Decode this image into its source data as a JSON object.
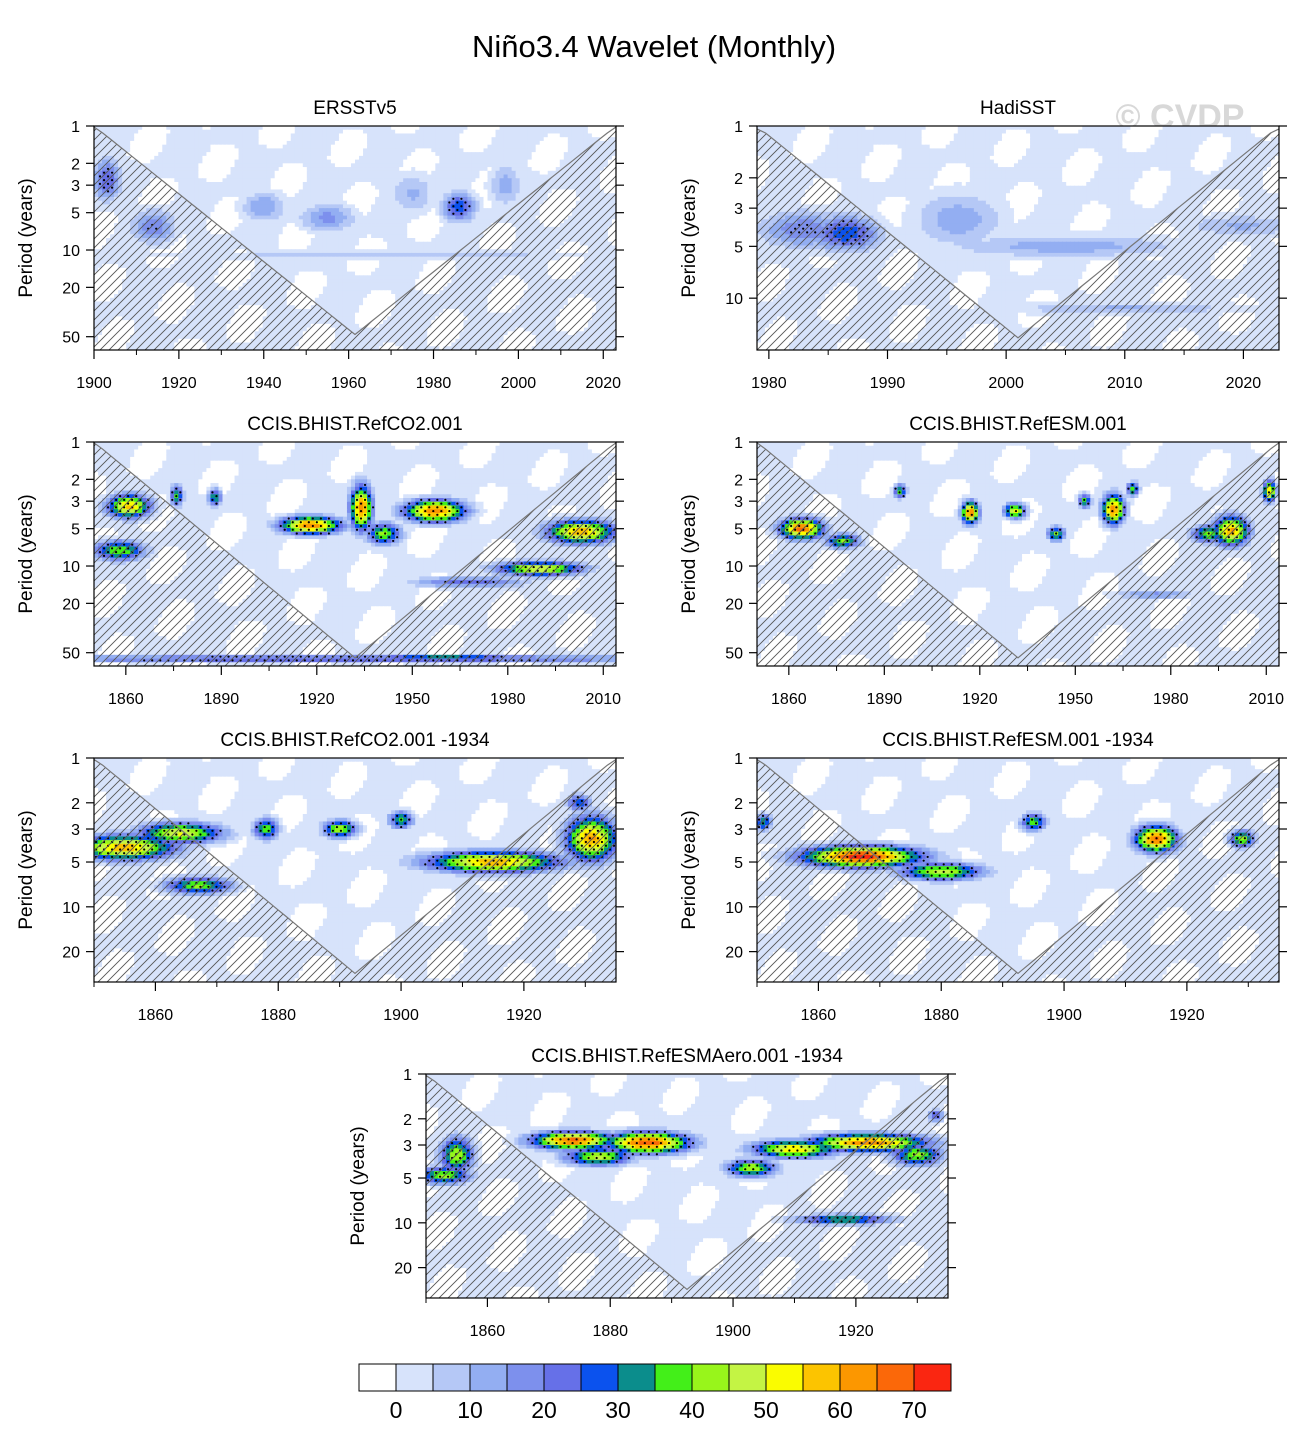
{
  "title": "Niño3.4 Wavelet (Monthly)",
  "watermark": "© CVDP",
  "colorbar": {
    "colors": [
      "#ffffff",
      "#d7e3fb",
      "#b5c8f6",
      "#93aef2",
      "#7d90ed",
      "#6670e8",
      "#0b52ee",
      "#0b8d8c",
      "#43ef19",
      "#98f51b",
      "#c4f444",
      "#fafc00",
      "#fcc400",
      "#fc9700",
      "#fb6809",
      "#fa2611"
    ],
    "labels": [
      "0",
      "10",
      "20",
      "30",
      "40",
      "50",
      "60",
      "70"
    ]
  },
  "chart_data": [
    {
      "type": "heatmap",
      "id": "ersstv5",
      "title": "ERSSTv5",
      "ylabel": "Period (years)",
      "x_range": [
        1900,
        2023
      ],
      "x_ticks": [
        1900,
        1920,
        1940,
        1960,
        1980,
        2000,
        2020
      ],
      "x_tick_labels": [
        "1900",
        "1920",
        "1940",
        "1960",
        "1980",
        "2000",
        "2020"
      ],
      "y_range": [
        1,
        64
      ],
      "y_ticks": [
        1,
        2,
        3,
        5,
        10,
        20,
        50
      ],
      "y_tick_labels": [
        "1",
        "2",
        "3",
        "5",
        "10",
        "20",
        "50"
      ],
      "coi_apex": 48,
      "blobs": [
        {
          "x": 1903,
          "p": 2.7,
          "w": 2.5,
          "h": 0.3,
          "v": 30
        },
        {
          "x": 1914,
          "p": 6.5,
          "w": 4,
          "h": 0.25,
          "v": 24
        },
        {
          "x": 1986,
          "p": 4.5,
          "w": 3,
          "h": 0.2,
          "v": 34
        },
        {
          "x": 1955,
          "p": 5.5,
          "w": 5,
          "h": 0.2,
          "v": 22
        },
        {
          "x": 1940,
          "p": 4.5,
          "w": 4,
          "h": 0.22,
          "v": 20
        },
        {
          "x": 1997,
          "p": 3,
          "w": 3,
          "h": 0.3,
          "v": 18
        },
        {
          "x": 1975,
          "p": 3.5,
          "w": 4,
          "h": 0.3,
          "v": 16
        },
        {
          "x": 1970,
          "p": 11,
          "w": 40,
          "h": 0.06,
          "v": 14
        }
      ]
    },
    {
      "type": "heatmap",
      "id": "hadisst",
      "title": "HadiSST",
      "ylabel": "Period (years)",
      "x_range": [
        1979,
        2023
      ],
      "x_ticks": [
        1980,
        1990,
        2000,
        2010,
        2020
      ],
      "x_tick_labels": [
        "1980",
        "1990",
        "2000",
        "2010",
        "2020"
      ],
      "y_range": [
        1,
        20
      ],
      "y_ticks": [
        1,
        2,
        3,
        5,
        10
      ],
      "y_tick_labels": [
        "1",
        "2",
        "3",
        "5",
        "10"
      ],
      "coi_apex": 17,
      "blobs": [
        {
          "x": 1986.5,
          "p": 4.2,
          "w": 2.2,
          "h": 0.18,
          "v": 34
        },
        {
          "x": 1983,
          "p": 4,
          "w": 3,
          "h": 0.2,
          "v": 24
        },
        {
          "x": 1996,
          "p": 3.5,
          "w": 3,
          "h": 0.3,
          "v": 18
        },
        {
          "x": 2005,
          "p": 5,
          "w": 8,
          "h": 0.12,
          "v": 18
        },
        {
          "x": 2010,
          "p": 11.5,
          "w": 8,
          "h": 0.07,
          "v": 16
        },
        {
          "x": 2020,
          "p": 3.8,
          "w": 4,
          "h": 0.12,
          "v": 16
        }
      ]
    },
    {
      "type": "heatmap",
      "id": "refco2",
      "title": "CCIS.BHIST.RefCO2.001",
      "ylabel": "Period (years)",
      "x_range": [
        1850,
        2014
      ],
      "x_ticks": [
        1860,
        1890,
        1920,
        1950,
        1980,
        2010
      ],
      "x_tick_labels": [
        "1860",
        "1890",
        "1920",
        "1950",
        "1980",
        "2010"
      ],
      "y_range": [
        1,
        64
      ],
      "y_ticks": [
        1,
        2,
        3,
        5,
        10,
        20,
        50
      ],
      "y_tick_labels": [
        "1",
        "2",
        "3",
        "5",
        "10",
        "20",
        "50"
      ],
      "coi_apex": 55,
      "blobs": [
        {
          "x": 1861,
          "p": 3.3,
          "w": 5,
          "h": 0.16,
          "v": 62
        },
        {
          "x": 1858,
          "p": 7.5,
          "w": 6,
          "h": 0.14,
          "v": 46
        },
        {
          "x": 1876,
          "p": 2.7,
          "w": 1.5,
          "h": 0.15,
          "v": 42
        },
        {
          "x": 1888,
          "p": 2.8,
          "w": 1.5,
          "h": 0.12,
          "v": 42
        },
        {
          "x": 1918,
          "p": 4.7,
          "w": 7,
          "h": 0.12,
          "v": 70
        },
        {
          "x": 1934,
          "p": 3.4,
          "w": 2.5,
          "h": 0.3,
          "v": 70
        },
        {
          "x": 1957,
          "p": 3.6,
          "w": 7,
          "h": 0.15,
          "v": 70
        },
        {
          "x": 1941,
          "p": 5.5,
          "w": 4,
          "h": 0.15,
          "v": 46
        },
        {
          "x": 2003,
          "p": 5.3,
          "w": 8,
          "h": 0.16,
          "v": 64
        },
        {
          "x": 1990,
          "p": 10.5,
          "w": 10,
          "h": 0.1,
          "v": 56
        },
        {
          "x": 1968,
          "p": 13.5,
          "w": 14,
          "h": 0.08,
          "v": 28
        },
        {
          "x": 1930,
          "p": 56,
          "w": 90,
          "h": 0.05,
          "v": 34
        },
        {
          "x": 1960,
          "p": 55,
          "w": 20,
          "h": 0.04,
          "v": 42
        }
      ]
    },
    {
      "type": "heatmap",
      "id": "refesm",
      "title": "CCIS.BHIST.RefESM.001",
      "ylabel": "Period (years)",
      "x_range": [
        1850,
        2014
      ],
      "x_ticks": [
        1860,
        1890,
        1920,
        1950,
        1980,
        2010
      ],
      "x_tick_labels": [
        "1860",
        "1890",
        "1920",
        "1950",
        "1980",
        "2010"
      ],
      "y_range": [
        1,
        64
      ],
      "y_ticks": [
        1,
        2,
        3,
        5,
        10,
        20,
        50
      ],
      "y_tick_labels": [
        "1",
        "2",
        "3",
        "5",
        "10",
        "20",
        "50"
      ],
      "coi_apex": 55,
      "blobs": [
        {
          "x": 1864,
          "p": 5,
          "w": 5,
          "h": 0.14,
          "v": 72
        },
        {
          "x": 1877,
          "p": 6.3,
          "w": 4,
          "h": 0.1,
          "v": 46
        },
        {
          "x": 1917,
          "p": 3.7,
          "w": 2,
          "h": 0.15,
          "v": 70
        },
        {
          "x": 1931,
          "p": 3.6,
          "w": 2.5,
          "h": 0.1,
          "v": 56
        },
        {
          "x": 1944,
          "p": 5.5,
          "w": 2,
          "h": 0.1,
          "v": 46
        },
        {
          "x": 1962,
          "p": 3.5,
          "w": 2.5,
          "h": 0.2,
          "v": 70
        },
        {
          "x": 1953,
          "p": 3,
          "w": 1.5,
          "h": 0.1,
          "v": 42
        },
        {
          "x": 1999,
          "p": 5.2,
          "w": 4,
          "h": 0.2,
          "v": 66
        },
        {
          "x": 1992,
          "p": 5.5,
          "w": 4,
          "h": 0.12,
          "v": 46
        },
        {
          "x": 2011,
          "p": 2.5,
          "w": 1.5,
          "h": 0.15,
          "v": 60
        },
        {
          "x": 1895,
          "p": 2.5,
          "w": 1.5,
          "h": 0.1,
          "v": 42
        },
        {
          "x": 1968,
          "p": 2.4,
          "w": 1.5,
          "h": 0.1,
          "v": 42
        },
        {
          "x": 1975,
          "p": 17,
          "w": 10,
          "h": 0.06,
          "v": 22
        }
      ]
    },
    {
      "type": "heatmap",
      "id": "refco2_1934",
      "title": "CCIS.BHIST.RefCO2.001 -1934",
      "ylabel": "Period (years)",
      "x_range": [
        1850,
        1935
      ],
      "x_ticks": [
        1860,
        1880,
        1900,
        1920
      ],
      "x_tick_labels": [
        "1860",
        "1880",
        "1900",
        "1920"
      ],
      "y_range": [
        1,
        32
      ],
      "y_ticks": [
        1,
        2,
        3,
        5,
        10,
        20
      ],
      "y_tick_labels": [
        "1",
        "2",
        "3",
        "5",
        "10",
        "20"
      ],
      "coi_apex": 28,
      "blobs": [
        {
          "x": 1855,
          "p": 4.0,
          "w": 6,
          "h": 0.14,
          "v": 64
        },
        {
          "x": 1864,
          "p": 3.2,
          "w": 5,
          "h": 0.12,
          "v": 56
        },
        {
          "x": 1867,
          "p": 7.2,
          "w": 4,
          "h": 0.1,
          "v": 46
        },
        {
          "x": 1878,
          "p": 3.0,
          "w": 1.5,
          "h": 0.12,
          "v": 44
        },
        {
          "x": 1890,
          "p": 3.0,
          "w": 2,
          "h": 0.1,
          "v": 50
        },
        {
          "x": 1900,
          "p": 2.6,
          "w": 1.5,
          "h": 0.1,
          "v": 42
        },
        {
          "x": 1915,
          "p": 5,
          "w": 8,
          "h": 0.12,
          "v": 64
        },
        {
          "x": 1931,
          "p": 3.5,
          "w": 3,
          "h": 0.25,
          "v": 66
        },
        {
          "x": 1929,
          "p": 2.0,
          "w": 1.5,
          "h": 0.1,
          "v": 36
        }
      ]
    },
    {
      "type": "heatmap",
      "id": "refesm_1934",
      "title": "CCIS.BHIST.RefESM.001 -1934",
      "ylabel": "Period (years)",
      "x_range": [
        1850,
        1935
      ],
      "x_ticks": [
        1860,
        1880,
        1900,
        1920
      ],
      "x_tick_labels": [
        "1860",
        "1880",
        "1900",
        "1920"
      ],
      "y_range": [
        1,
        32
      ],
      "y_ticks": [
        1,
        2,
        3,
        5,
        10,
        20
      ],
      "y_tick_labels": [
        "1",
        "2",
        "3",
        "5",
        "10",
        "20"
      ],
      "coi_apex": 28,
      "blobs": [
        {
          "x": 1867,
          "p": 4.6,
          "w": 7,
          "h": 0.12,
          "v": 78
        },
        {
          "x": 1880,
          "p": 5.8,
          "w": 5,
          "h": 0.1,
          "v": 52
        },
        {
          "x": 1915,
          "p": 3.5,
          "w": 2.5,
          "h": 0.15,
          "v": 72
        },
        {
          "x": 1929,
          "p": 3.5,
          "w": 1.5,
          "h": 0.1,
          "v": 48
        },
        {
          "x": 1895,
          "p": 2.7,
          "w": 1.5,
          "h": 0.1,
          "v": 44
        },
        {
          "x": 1851,
          "p": 2.7,
          "w": 1,
          "h": 0.1,
          "v": 40
        }
      ]
    },
    {
      "type": "heatmap",
      "id": "refesmaero_1934",
      "title": "CCIS.BHIST.RefESMAero.001 -1934",
      "ylabel": "Period (years)",
      "x_range": [
        1850,
        1935
      ],
      "x_ticks": [
        1860,
        1880,
        1900,
        1920
      ],
      "x_tick_labels": [
        "1860",
        "1880",
        "1900",
        "1920"
      ],
      "y_range": [
        1,
        32
      ],
      "y_ticks": [
        1,
        2,
        3,
        5,
        10,
        20
      ],
      "y_tick_labels": [
        "1",
        "2",
        "3",
        "5",
        "10",
        "20"
      ],
      "coi_apex": 28,
      "blobs": [
        {
          "x": 1855,
          "p": 3.5,
          "w": 2,
          "h": 0.2,
          "v": 50
        },
        {
          "x": 1853,
          "p": 4.8,
          "w": 3,
          "h": 0.1,
          "v": 48
        },
        {
          "x": 1874,
          "p": 2.8,
          "w": 5,
          "h": 0.1,
          "v": 72
        },
        {
          "x": 1886,
          "p": 2.9,
          "w": 5,
          "h": 0.12,
          "v": 74
        },
        {
          "x": 1878,
          "p": 3.6,
          "w": 4,
          "h": 0.1,
          "v": 52
        },
        {
          "x": 1922,
          "p": 2.9,
          "w": 7,
          "h": 0.1,
          "v": 70
        },
        {
          "x": 1910,
          "p": 3.2,
          "w": 5,
          "h": 0.1,
          "v": 60
        },
        {
          "x": 1903,
          "p": 4.3,
          "w": 3,
          "h": 0.1,
          "v": 50
        },
        {
          "x": 1930,
          "p": 3.5,
          "w": 3,
          "h": 0.12,
          "v": 48
        },
        {
          "x": 1918,
          "p": 9.5,
          "w": 6,
          "h": 0.06,
          "v": 42
        },
        {
          "x": 1933,
          "p": 1.9,
          "w": 1,
          "h": 0.08,
          "v": 30
        }
      ]
    }
  ]
}
